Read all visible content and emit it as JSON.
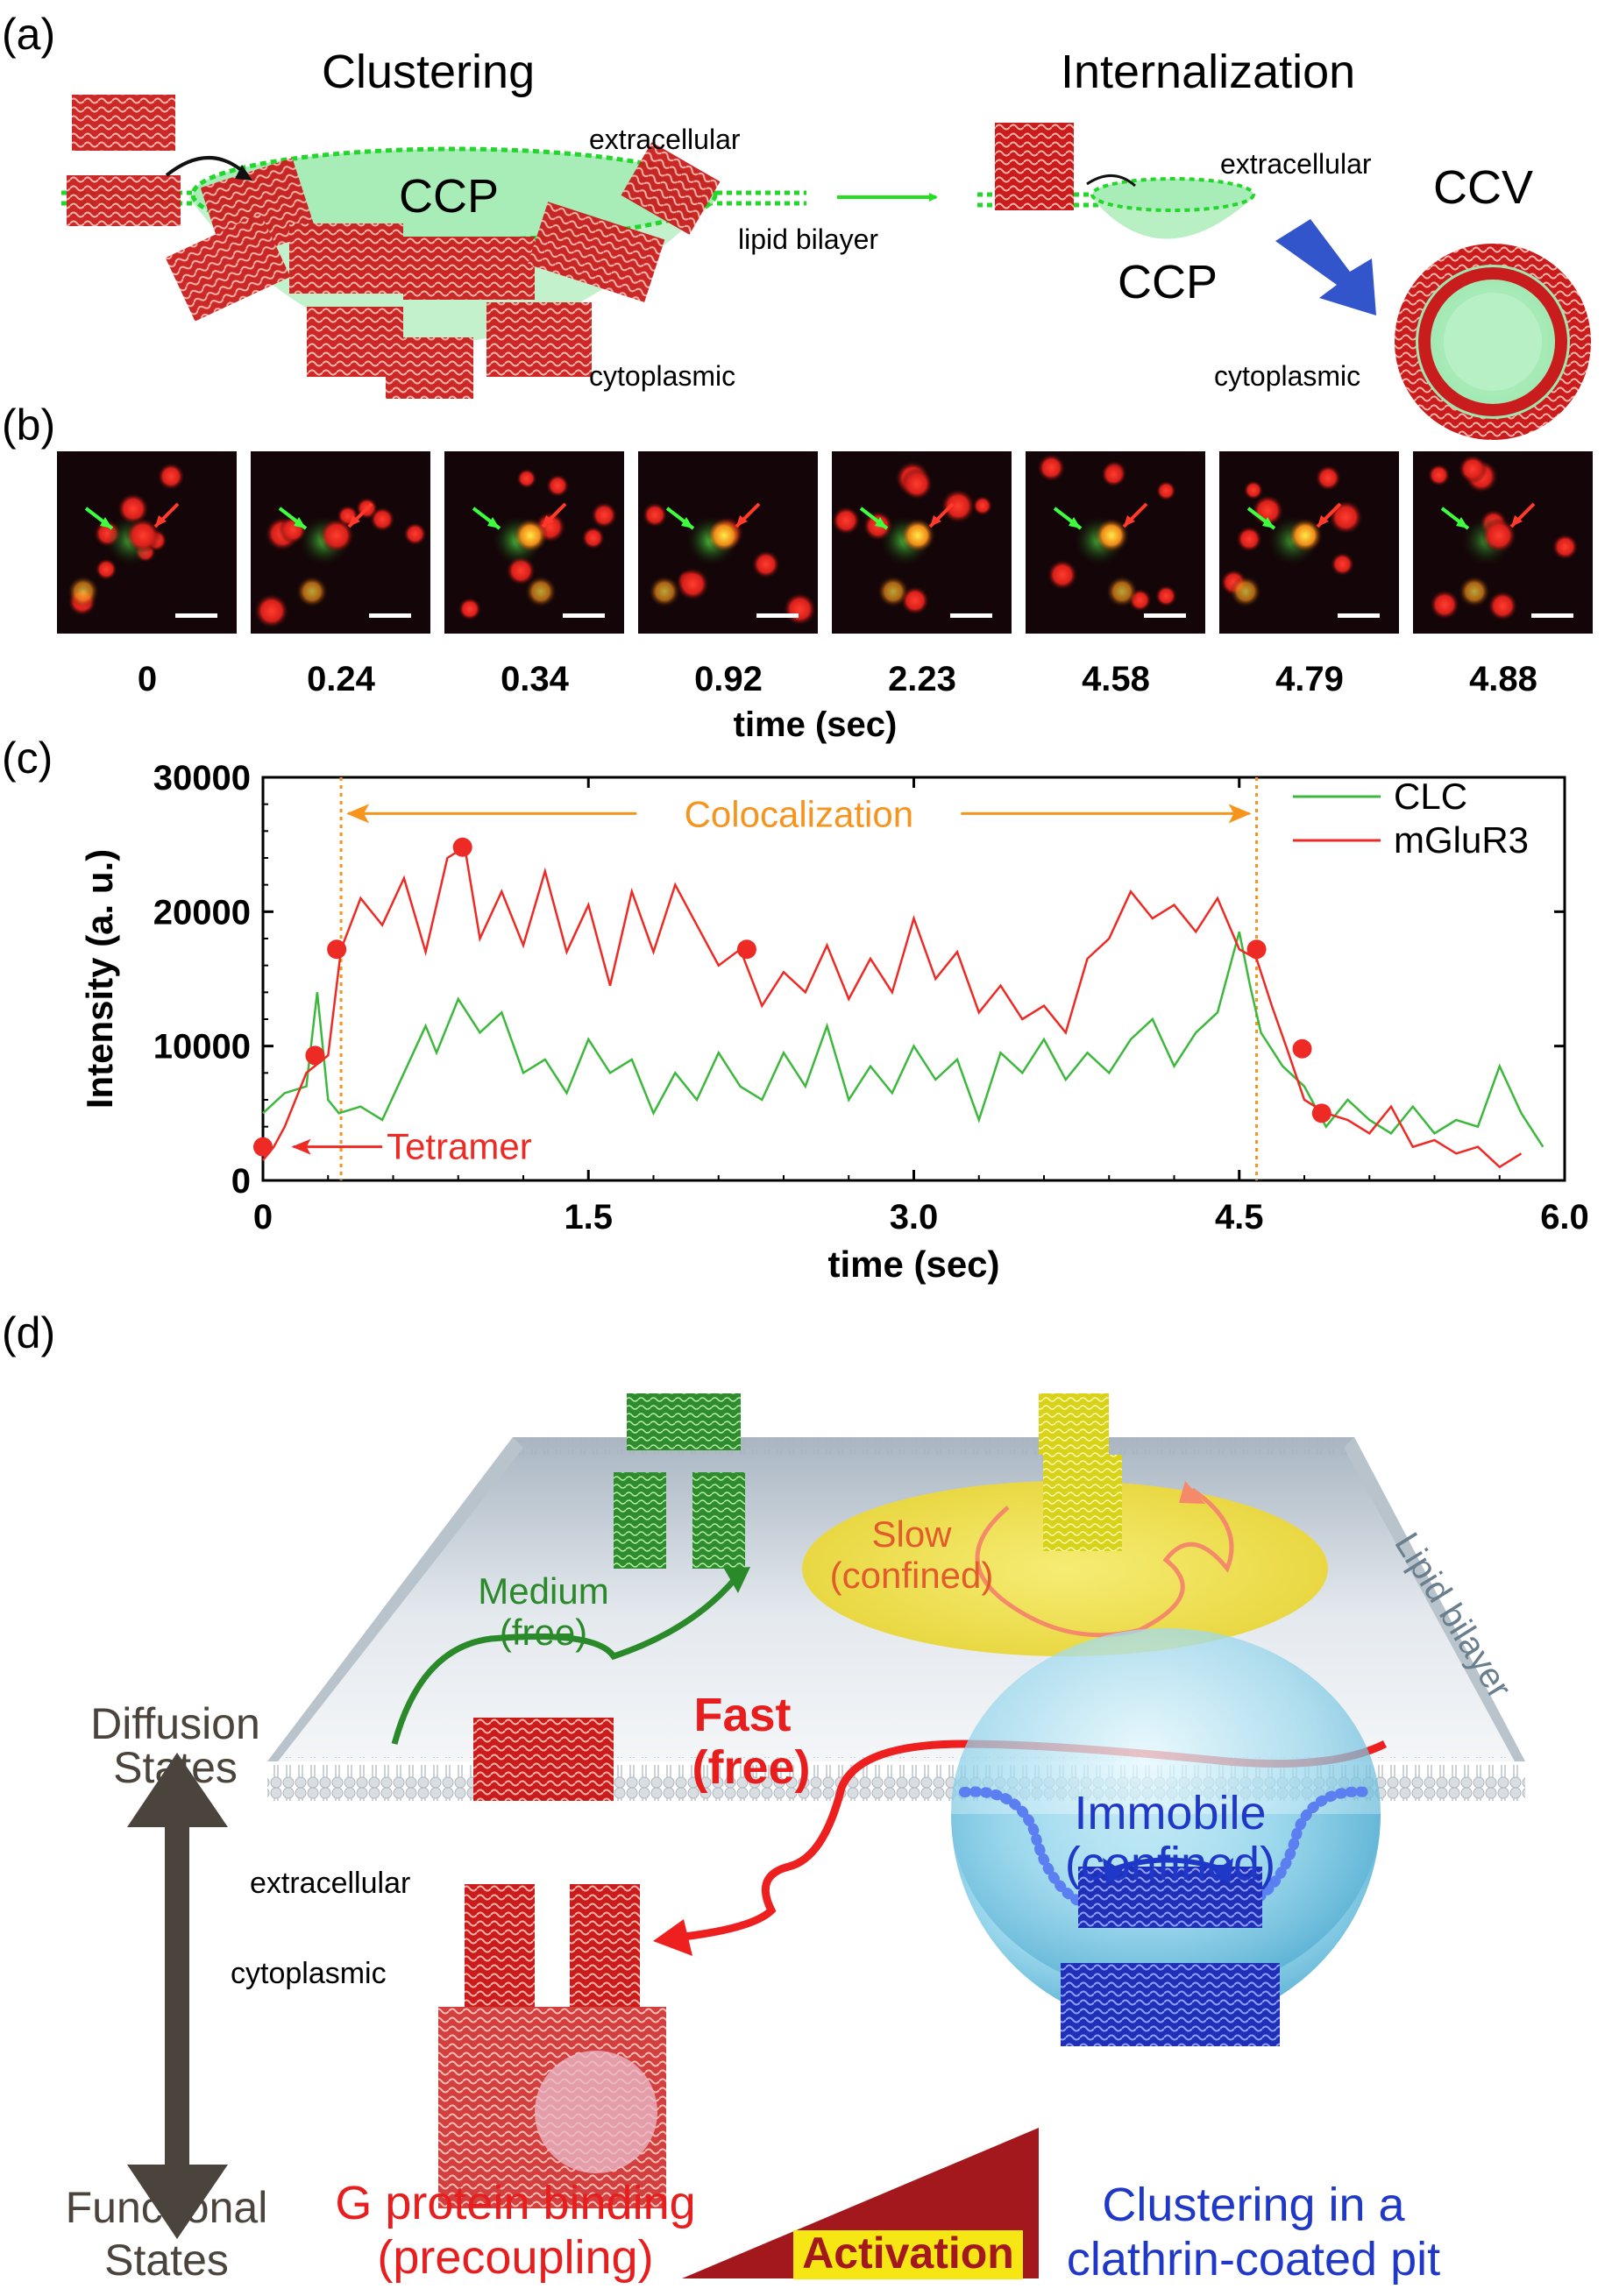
{
  "panel_a": {
    "label": "(a)",
    "title_left": "Clustering",
    "title_right": "Internalization",
    "ccp_left": "CCP",
    "ccp_right": "CCP",
    "ccv": "CCV",
    "extracellular_left": "extracellular",
    "extracellular_right": "extracellular",
    "lipid_bilayer": "lipid bilayer",
    "cytoplasmic_left": "cytoplasmic",
    "cytoplasmic_right": "cytoplasmic"
  },
  "panel_b": {
    "label": "(b)",
    "frames": [
      "0",
      "0.24",
      "0.34",
      "0.92",
      "2.23",
      "4.58",
      "4.79",
      "4.88"
    ],
    "xlabel": "time (sec)"
  },
  "panel_c": {
    "label": "(c)",
    "annotation_colocalization": "Colocalization",
    "annotation_tetramer": "Tetramer"
  },
  "chart_data": {
    "type": "line",
    "title": "",
    "xlabel": "time (sec)",
    "ylabel": "Intensity (a. u.)",
    "xlim": [
      0,
      6.0
    ],
    "ylim": [
      0,
      30000
    ],
    "xticks": [
      "0",
      "1.5",
      "3.0",
      "4.5",
      "6.0"
    ],
    "yticks": [
      "0",
      "10000",
      "20000",
      "30000"
    ],
    "legend_position": "top-right",
    "colocalization_interval": [
      0.36,
      4.58
    ],
    "series": [
      {
        "name": "CLC",
        "color": "#3cb83c",
        "x": [
          0.0,
          0.1,
          0.2,
          0.25,
          0.3,
          0.35,
          0.45,
          0.55,
          0.65,
          0.75,
          0.8,
          0.9,
          1.0,
          1.1,
          1.2,
          1.3,
          1.4,
          1.5,
          1.6,
          1.7,
          1.8,
          1.9,
          2.0,
          2.1,
          2.2,
          2.3,
          2.4,
          2.5,
          2.6,
          2.7,
          2.8,
          2.9,
          3.0,
          3.1,
          3.2,
          3.3,
          3.4,
          3.5,
          3.6,
          3.7,
          3.8,
          3.9,
          4.0,
          4.1,
          4.2,
          4.3,
          4.4,
          4.5,
          4.55,
          4.6,
          4.7,
          4.8,
          4.9,
          5.0,
          5.1,
          5.2,
          5.3,
          5.4,
          5.5,
          5.6,
          5.7,
          5.8,
          5.9
        ],
        "y": [
          5000,
          6500,
          7000,
          14000,
          6000,
          5000,
          5500,
          4500,
          8000,
          11500,
          9500,
          13500,
          11000,
          12500,
          8000,
          9000,
          6500,
          10500,
          8000,
          9000,
          5000,
          8000,
          6000,
          9500,
          7000,
          6000,
          9500,
          7000,
          11500,
          6000,
          8500,
          6500,
          10000,
          7500,
          9000,
          4500,
          9500,
          8000,
          10500,
          7500,
          9500,
          8000,
          10500,
          12000,
          8500,
          11000,
          12500,
          18500,
          14500,
          11000,
          8500,
          7000,
          4000,
          6000,
          4500,
          3500,
          5500,
          3500,
          4500,
          4000,
          8500,
          5000,
          2500
        ]
      },
      {
        "name": "mGluR3",
        "color": "#ee2a24",
        "x": [
          0.0,
          0.05,
          0.1,
          0.2,
          0.3,
          0.36,
          0.45,
          0.55,
          0.65,
          0.75,
          0.85,
          0.93,
          1.0,
          1.1,
          1.2,
          1.3,
          1.4,
          1.5,
          1.6,
          1.7,
          1.8,
          1.9,
          2.0,
          2.1,
          2.2,
          2.3,
          2.4,
          2.5,
          2.6,
          2.7,
          2.8,
          2.9,
          3.0,
          3.1,
          3.2,
          3.3,
          3.4,
          3.5,
          3.6,
          3.7,
          3.8,
          3.9,
          4.0,
          4.1,
          4.2,
          4.3,
          4.4,
          4.5,
          4.58,
          4.65,
          4.72,
          4.8,
          4.9,
          5.0,
          5.1,
          5.2,
          5.3,
          5.4,
          5.5,
          5.6,
          5.7,
          5.8
        ],
        "y": [
          1500,
          2500,
          4000,
          8000,
          9300,
          17200,
          21000,
          19000,
          22500,
          17000,
          24000,
          24800,
          18000,
          21500,
          17500,
          23000,
          17000,
          20500,
          14500,
          21500,
          17000,
          22000,
          19000,
          16000,
          17200,
          13000,
          15500,
          14000,
          17500,
          13500,
          16500,
          14000,
          19500,
          15000,
          17000,
          12500,
          14500,
          12000,
          13000,
          11000,
          16500,
          18000,
          21500,
          19500,
          20500,
          18500,
          21000,
          17200,
          16500,
          13000,
          9800,
          6000,
          5000,
          4500,
          3500,
          5500,
          2500,
          3000,
          2000,
          2500,
          1000,
          2000
        ]
      }
    ],
    "markers": {
      "name": "mGluR3 frames",
      "x": [
        0.0,
        0.24,
        0.34,
        0.92,
        2.23,
        4.58,
        4.79,
        4.88
      ],
      "y": [
        2500,
        9300,
        17200,
        24800,
        17200,
        17200,
        9800,
        5000
      ]
    }
  },
  "panel_d": {
    "label": "(d)",
    "diffusion_states_line1": "Diffusion",
    "diffusion_states_line2": "States",
    "functional_states_line1": "Functional",
    "functional_states_line2": "States",
    "medium_line1": "Medium",
    "medium_line2": "(free)",
    "slow_line1": "Slow",
    "slow_line2": "(confined)",
    "fast_line1": "Fast",
    "fast_line2": "(free)",
    "immobile_line1": "Immobile",
    "immobile_line2": "(confined)",
    "lipid_bilayer": "Lipid bilayer",
    "extracellular": "extracellular",
    "cytoplasmic": "cytoplasmic",
    "g_protein_line1": "G protein binding",
    "g_protein_line2": "(precoupling)",
    "activation": "Activation",
    "clustering_line1": "Clustering in a",
    "clustering_line2": "clathrin-coated pit"
  }
}
